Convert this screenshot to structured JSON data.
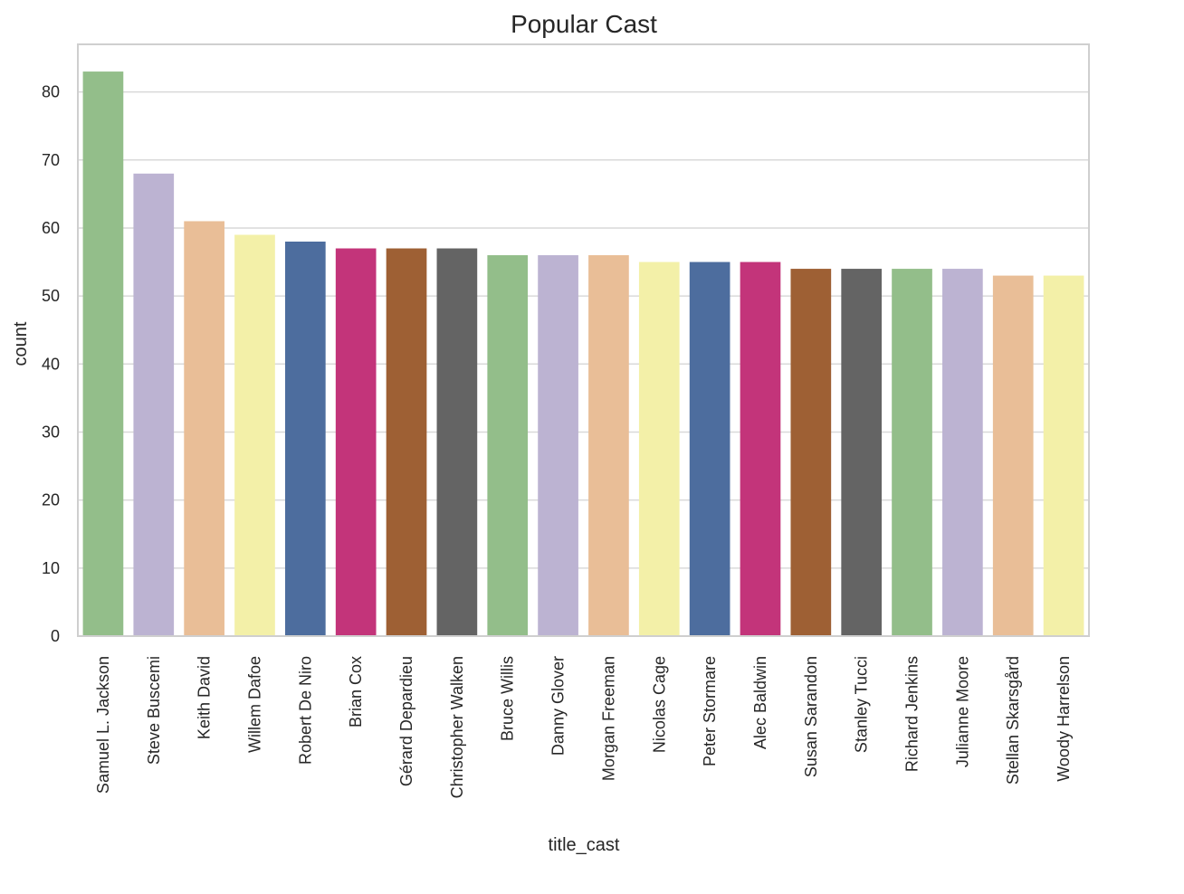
{
  "chart_data": {
    "type": "bar",
    "title": "Popular Cast",
    "xlabel": "title_cast",
    "ylabel": "count",
    "ylim": [
      0,
      87
    ],
    "yticks": [
      0,
      10,
      20,
      30,
      40,
      50,
      60,
      70,
      80
    ],
    "grid": true,
    "categories": [
      "Samuel L. Jackson",
      "Steve Buscemi",
      "Keith David",
      "Willem Dafoe",
      "Robert De Niro",
      "Brian Cox",
      "Gérard Depardieu",
      "Christopher Walken",
      "Bruce Willis",
      "Danny Glover",
      "Morgan Freeman",
      "Nicolas Cage",
      "Peter Stormare",
      "Alec Baldwin",
      "Susan Sarandon",
      "Stanley Tucci",
      "Richard Jenkins",
      "Julianne Moore",
      "Stellan Skarsgård",
      "Woody Harrelson"
    ],
    "values": [
      83,
      68,
      61,
      59,
      58,
      57,
      57,
      57,
      56,
      56,
      56,
      55,
      55,
      55,
      54,
      54,
      54,
      54,
      53,
      53
    ],
    "colors": [
      "#93be8a",
      "#bcb3d2",
      "#e9be97",
      "#f3f0a8",
      "#4d6d9e",
      "#c3347a",
      "#9e6034",
      "#646464",
      "#93be8a",
      "#bcb3d2",
      "#e9be97",
      "#f3f0a8",
      "#4d6d9e",
      "#c3347a",
      "#9e6034",
      "#646464",
      "#93be8a",
      "#bcb3d2",
      "#e9be97",
      "#f3f0a8"
    ]
  }
}
